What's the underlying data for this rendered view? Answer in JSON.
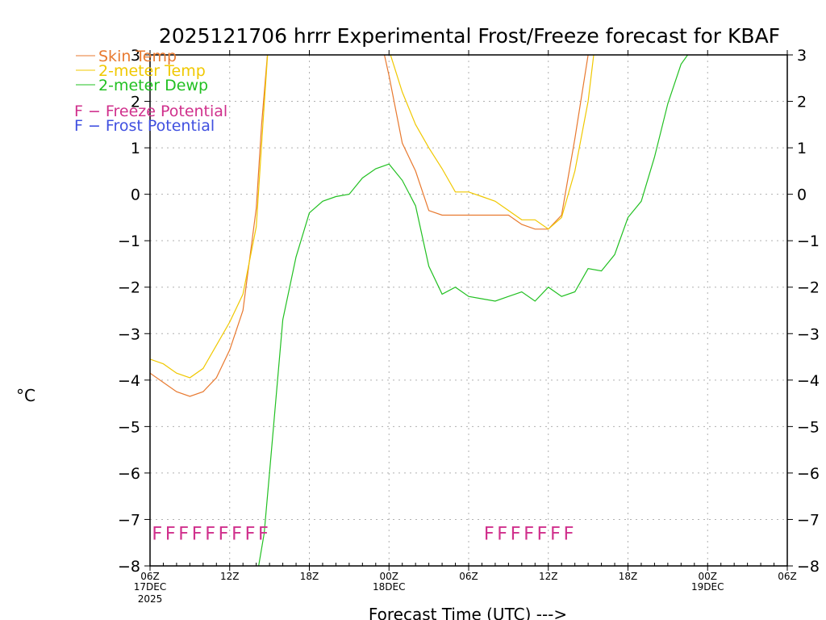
{
  "chart_data": {
    "type": "line",
    "title": "2025121706 hrrr Experimental Frost/Freeze forecast for KBAF",
    "ylabel": "°C",
    "xlabel": "Forecast Time (UTC) --->",
    "ylim": [
      -8,
      3
    ],
    "yticks": [
      -8,
      -7,
      -6,
      -5,
      -4,
      -3,
      -2,
      -1,
      0,
      1,
      2,
      3
    ],
    "x_hours_range": [
      0,
      48
    ],
    "x_ticks": [
      {
        "hour": 0,
        "label": "06Z",
        "sub1": "17DEC",
        "sub2": "2025"
      },
      {
        "hour": 6,
        "label": "12Z",
        "sub1": "",
        "sub2": ""
      },
      {
        "hour": 12,
        "label": "18Z",
        "sub1": "",
        "sub2": ""
      },
      {
        "hour": 18,
        "label": "00Z",
        "sub1": "18DEC",
        "sub2": ""
      },
      {
        "hour": 24,
        "label": "06Z",
        "sub1": "",
        "sub2": ""
      },
      {
        "hour": 30,
        "label": "12Z",
        "sub1": "",
        "sub2": ""
      },
      {
        "hour": 36,
        "label": "18Z",
        "sub1": "",
        "sub2": ""
      },
      {
        "hour": 42,
        "label": "00Z",
        "sub1": "19DEC",
        "sub2": ""
      },
      {
        "hour": 48,
        "label": "06Z",
        "sub1": "",
        "sub2": ""
      }
    ],
    "grid": true,
    "legend_position": "top-left",
    "series": [
      {
        "name": "Skin Temp",
        "color": "#e8792f",
        "hours": [
          0,
          1,
          2,
          3,
          4,
          5,
          6,
          7,
          8,
          8.4,
          8.9,
          17.5,
          18,
          19,
          20,
          21,
          22,
          23,
          24,
          25,
          26,
          27,
          28,
          29,
          30,
          31,
          32,
          33,
          33.4
        ],
        "values": [
          -3.85,
          -4.05,
          -4.25,
          -4.35,
          -4.25,
          -3.95,
          -3.35,
          -2.5,
          -0.3,
          1.5,
          3.2,
          3.2,
          2.55,
          1.1,
          0.5,
          -0.35,
          -0.45,
          -0.45,
          -0.45,
          -0.45,
          -0.45,
          -0.45,
          -0.65,
          -0.75,
          -0.75,
          -0.45,
          1.2,
          3.0,
          3.2
        ]
      },
      {
        "name": "2-meter Temp",
        "color": "#f0c800",
        "hours": [
          0,
          1,
          2,
          3,
          4,
          5,
          6,
          7,
          8,
          8.5,
          8.9,
          17.8,
          18,
          19,
          20,
          21,
          22,
          23,
          24,
          25,
          26,
          27,
          28,
          29,
          30,
          31,
          32,
          33,
          33.5
        ],
        "values": [
          -3.55,
          -3.65,
          -3.85,
          -3.95,
          -3.75,
          -3.25,
          -2.75,
          -2.15,
          -0.7,
          1.5,
          3.2,
          3.2,
          3.1,
          2.2,
          1.5,
          1.0,
          0.55,
          0.05,
          0.05,
          -0.05,
          -0.15,
          -0.35,
          -0.55,
          -0.55,
          -0.75,
          -0.5,
          0.5,
          2.0,
          3.2
        ]
      },
      {
        "name": "2-meter Dewp",
        "color": "#22c022",
        "hours": [
          8,
          8.6,
          9,
          10,
          11,
          12,
          13,
          14,
          15,
          16,
          17,
          18,
          19,
          20,
          21,
          22,
          23,
          24,
          25,
          26,
          27,
          28,
          29,
          30,
          31,
          32,
          33,
          34,
          35,
          36,
          37,
          38,
          39,
          40,
          41,
          41.8
        ],
        "values": [
          -8.3,
          -7.3,
          -6.0,
          -2.7,
          -1.35,
          -0.4,
          -0.15,
          -0.05,
          0.0,
          0.35,
          0.55,
          0.65,
          0.3,
          -0.25,
          -1.55,
          -2.15,
          -2.0,
          -2.2,
          -2.25,
          -2.3,
          -2.2,
          -2.1,
          -2.3,
          -2.0,
          -2.2,
          -2.1,
          -1.6,
          -1.65,
          -1.3,
          -0.5,
          -0.15,
          0.8,
          1.95,
          2.8,
          3.2,
          3.2
        ]
      }
    ],
    "legend": [
      {
        "label": "Skin Temp",
        "color": "#e8792f"
      },
      {
        "label": "2-meter Temp",
        "color": "#f0c800"
      },
      {
        "label": "2-meter Dewp",
        "color": "#22c022"
      }
    ],
    "potential_legend": [
      {
        "symbol": "F",
        "label": " − Freeze Potential",
        "color": "#d0308c"
      },
      {
        "symbol": "F",
        "label": " − Frost Potential",
        "color": "#4050e0"
      }
    ],
    "freeze_flags": {
      "symbol": "F",
      "color": "#d0308c",
      "hours": [
        0,
        1,
        2,
        3,
        4,
        5,
        6,
        7,
        8,
        25,
        26,
        27,
        28,
        29,
        30,
        31
      ]
    }
  }
}
